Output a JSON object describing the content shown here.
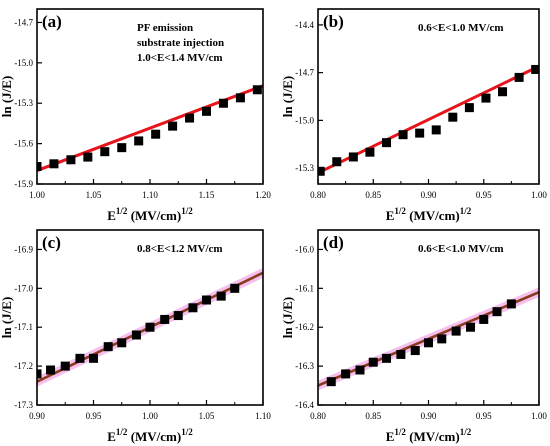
{
  "chart_data": [
    {
      "type": "scatter",
      "panel_label": "(a)",
      "annotation": [
        "PF emission",
        "substrate injection",
        "1.0<E<1.4 MV/cm"
      ],
      "xlabel": "E",
      "xlabel_sup": "1/2",
      "xlabel_unit": " (MV/cm)",
      "xlabel_unit_sup": "1/2",
      "ylabel": "ln (J/E)",
      "xlim": [
        1.0,
        1.2
      ],
      "ylim": [
        -15.9,
        -14.6
      ],
      "xticks": [
        "1.00",
        "1.05",
        "1.10",
        "1.15",
        "1.20"
      ],
      "yticks": [
        "-14.7",
        "-15.0",
        "-15.3",
        "-15.6",
        "-15.9"
      ],
      "ytick_values": [
        -14.7,
        -15.0,
        -15.3,
        -15.6,
        -15.9
      ],
      "xtick_values": [
        1.0,
        1.05,
        1.1,
        1.15,
        1.2
      ],
      "points": {
        "x": [
          1.0,
          1.015,
          1.03,
          1.045,
          1.06,
          1.075,
          1.09,
          1.105,
          1.12,
          1.135,
          1.15,
          1.165,
          1.18,
          1.195
        ],
        "y": [
          -15.77,
          -15.75,
          -15.72,
          -15.7,
          -15.66,
          -15.63,
          -15.58,
          -15.53,
          -15.47,
          -15.41,
          -15.36,
          -15.3,
          -15.26,
          -15.2
        ]
      },
      "fit": {
        "x": [
          1.0,
          1.2
        ],
        "y": [
          -15.8,
          -15.17
        ]
      },
      "marker_color": "#000000",
      "fit_color": "#e8141b"
    },
    {
      "type": "scatter",
      "panel_label": "(b)",
      "annotation": [
        "0.6<E<1.0 MV/cm"
      ],
      "xlabel": "E",
      "xlabel_sup": "1/2",
      "xlabel_unit": " (MV/cm)",
      "xlabel_unit_sup": "1/2",
      "ylabel": "ln (J/E)",
      "xlim": [
        0.8,
        1.0
      ],
      "ylim": [
        -15.4,
        -14.3
      ],
      "xticks": [
        "0.80",
        "0.85",
        "0.90",
        "0.95",
        "1.00"
      ],
      "yticks": [
        "-14.4",
        "-14.7",
        "-15.0",
        "-15.3"
      ],
      "ytick_values": [
        -14.4,
        -14.7,
        -15.0,
        -15.3
      ],
      "xtick_values": [
        0.8,
        0.85,
        0.9,
        0.95,
        1.0
      ],
      "points": {
        "x": [
          0.802,
          0.817,
          0.832,
          0.847,
          0.862,
          0.877,
          0.892,
          0.907,
          0.922,
          0.937,
          0.952,
          0.967,
          0.982,
          0.997
        ],
        "y": [
          -15.32,
          -15.26,
          -15.23,
          -15.2,
          -15.14,
          -15.09,
          -15.08,
          -15.06,
          -14.98,
          -14.92,
          -14.86,
          -14.82,
          -14.73,
          -14.68
        ]
      },
      "fit": {
        "x": [
          0.8,
          1.0
        ],
        "y": [
          -15.33,
          -14.66
        ]
      },
      "marker_color": "#000000",
      "fit_color": "#e8141b"
    },
    {
      "type": "scatter",
      "panel_label": "(c)",
      "annotation": [
        "0.8<E<1.2 MV/cm"
      ],
      "xlabel": "E",
      "xlabel_sup": "1/2",
      "xlabel_unit": " (MV/cm)",
      "xlabel_unit_sup": "1/2",
      "ylabel": "ln (J/E)",
      "xlim": [
        0.9,
        1.1
      ],
      "ylim": [
        -17.3,
        -16.85
      ],
      "xticks": [
        "0.90",
        "0.95",
        "1.00",
        "1.05",
        "1.10"
      ],
      "yticks": [
        "-16.9",
        "-17.0",
        "-17.1",
        "-17.2",
        "-17.3"
      ],
      "ytick_values": [
        -16.9,
        -17.0,
        -17.1,
        -17.2,
        -17.3
      ],
      "xtick_values": [
        0.9,
        0.95,
        1.0,
        1.05,
        1.1
      ],
      "points": {
        "x": [
          0.9,
          0.912,
          0.925,
          0.938,
          0.95,
          0.963,
          0.975,
          0.988,
          1.0,
          1.013,
          1.025,
          1.038,
          1.05,
          1.063,
          1.075
        ],
        "y": [
          -17.22,
          -17.21,
          -17.2,
          -17.18,
          -17.18,
          -17.15,
          -17.14,
          -17.12,
          -17.1,
          -17.08,
          -17.07,
          -17.05,
          -17.03,
          -17.02,
          -17.0
        ]
      },
      "fit": {
        "x": [
          0.9,
          1.1
        ],
        "y": [
          -17.24,
          -16.96
        ]
      },
      "marker_color": "#000000",
      "fit_color": "#8b3a1e",
      "fit_halo_color": "#f4b6ec"
    },
    {
      "type": "scatter",
      "panel_label": "(d)",
      "annotation": [
        "0.6<E<1.0 MV/cm"
      ],
      "xlabel": "E",
      "xlabel_sup": "1/2",
      "xlabel_unit": " (MV/cm)",
      "xlabel_unit_sup": "1/2",
      "ylabel": "ln (J/E)",
      "xlim": [
        0.8,
        1.0
      ],
      "ylim": [
        -16.4,
        -15.95
      ],
      "xticks": [
        "0.80",
        "0.85",
        "0.90",
        "0.95",
        "1.00"
      ],
      "yticks": [
        "-16.0",
        "-16.1",
        "-16.2",
        "-16.3",
        "-16.4"
      ],
      "ytick_values": [
        -16.0,
        -16.1,
        -16.2,
        -16.3,
        -16.4
      ],
      "xtick_values": [
        0.8,
        0.85,
        0.9,
        0.95,
        1.0
      ],
      "points": {
        "x": [
          0.812,
          0.825,
          0.838,
          0.85,
          0.862,
          0.875,
          0.888,
          0.9,
          0.912,
          0.925,
          0.938,
          0.95,
          0.962,
          0.975
        ],
        "y": [
          -16.34,
          -16.32,
          -16.31,
          -16.29,
          -16.28,
          -16.27,
          -16.26,
          -16.24,
          -16.23,
          -16.21,
          -16.2,
          -16.18,
          -16.16,
          -16.14
        ]
      },
      "fit": {
        "x": [
          0.8,
          1.0
        ],
        "y": [
          -16.35,
          -16.11
        ]
      },
      "marker_color": "#000000",
      "fit_color": "#8b3a1e",
      "fit_halo_color": "#f4b6ec"
    }
  ]
}
